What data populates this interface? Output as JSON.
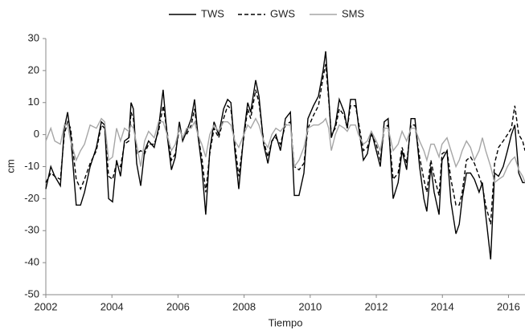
{
  "chart_data": {
    "type": "line",
    "legend_position": "top",
    "xlabel": "Tiempo",
    "ylabel": "cm",
    "xlim": [
      2002,
      2016.5
    ],
    "xticks": [
      2002,
      2004,
      2006,
      2008,
      2010,
      2012,
      2014,
      2016
    ],
    "ylim": [
      -50,
      30
    ],
    "yticks": [
      -50,
      -40,
      -30,
      -20,
      -10,
      0,
      10,
      20,
      30
    ],
    "grid": false,
    "x": [
      2002.0,
      2002.15,
      2002.27,
      2002.44,
      2002.56,
      2002.66,
      2002.75,
      2002.92,
      2003.05,
      2003.17,
      2003.34,
      2003.53,
      2003.68,
      2003.78,
      2003.9,
      2004.02,
      2004.14,
      2004.26,
      2004.38,
      2004.51,
      2004.58,
      2004.65,
      2004.75,
      2004.87,
      2004.99,
      2005.11,
      2005.28,
      2005.41,
      2005.55,
      2005.67,
      2005.8,
      2005.92,
      2006.04,
      2006.14,
      2006.26,
      2006.4,
      2006.5,
      2006.6,
      2006.72,
      2006.84,
      2006.96,
      2007.09,
      2007.23,
      2007.38,
      2007.5,
      2007.6,
      2007.72,
      2007.84,
      2007.99,
      2008.11,
      2008.2,
      2008.35,
      2008.45,
      2008.59,
      2008.72,
      2008.84,
      2008.96,
      2009.1,
      2009.25,
      2009.4,
      2009.52,
      2009.66,
      2009.81,
      2009.93,
      2010.1,
      2010.25,
      2010.39,
      2010.47,
      2010.56,
      2010.64,
      2010.76,
      2010.88,
      2011.03,
      2011.12,
      2011.22,
      2011.37,
      2011.46,
      2011.61,
      2011.73,
      2011.85,
      2012.0,
      2012.12,
      2012.24,
      2012.36,
      2012.51,
      2012.66,
      2012.78,
      2012.92,
      2013.05,
      2013.17,
      2013.31,
      2013.44,
      2013.53,
      2013.65,
      2013.75,
      2013.9,
      2013.99,
      2014.14,
      2014.26,
      2014.41,
      2014.51,
      2014.6,
      2014.73,
      2014.85,
      2014.97,
      2015.11,
      2015.21,
      2015.31,
      2015.46,
      2015.58,
      2015.7,
      2015.84,
      2015.97,
      2016.09,
      2016.19,
      2016.31,
      2016.43,
      2016.5
    ],
    "series": [
      {
        "name": "TWS",
        "color": "#000000",
        "line_style": "solid",
        "values": [
          -17,
          -10,
          -13,
          -16,
          2,
          7,
          0,
          -22,
          -22,
          -18,
          -10,
          -4,
          4,
          3,
          -20,
          -21,
          -8,
          -13,
          -2,
          -1,
          10,
          8,
          -9,
          -16,
          -5,
          -2,
          -4,
          2,
          14,
          0,
          -11,
          -7,
          4,
          -2,
          1,
          5,
          11,
          0,
          -10,
          -25,
          -5,
          4,
          0,
          8,
          11,
          10,
          -5,
          -17,
          0,
          10,
          7,
          17,
          12,
          -3,
          -9,
          -2,
          0,
          -5,
          5,
          7,
          -19,
          -19,
          -12,
          5,
          9,
          12,
          20,
          26,
          12,
          -1,
          3,
          11,
          7,
          2,
          11,
          11,
          3,
          -8,
          -6,
          1,
          -5,
          -10,
          4,
          5,
          -20,
          -15,
          -5,
          -11,
          5,
          5,
          -10,
          -20,
          -24,
          -10,
          -18,
          -25,
          -8,
          -5,
          -21,
          -31,
          -28,
          -20,
          -12,
          -12,
          -14,
          -18,
          -15,
          -25,
          -39,
          -12,
          -13,
          -10,
          -5,
          0,
          3,
          -12,
          -15,
          -15
        ]
      },
      {
        "name": "GWS",
        "color": "#000000",
        "line_style": "dashed",
        "values": [
          -15,
          -12,
          -13,
          -14,
          0,
          4,
          2,
          -14,
          -17,
          -14,
          -9,
          -5,
          3,
          2,
          -13,
          -14,
          -9,
          -10,
          -3,
          -2,
          7,
          5,
          -6,
          -5,
          -6,
          -3,
          -3,
          1,
          9,
          1,
          -8,
          -6,
          2,
          -1,
          0,
          3,
          8,
          0,
          -7,
          -18,
          -6,
          2,
          -1,
          5,
          9,
          8,
          -3,
          -13,
          -1,
          8,
          5,
          14,
          10,
          -2,
          -7,
          -2,
          -1,
          -3,
          3,
          4,
          -10,
          -11,
          -9,
          2,
          6,
          9,
          18,
          22,
          11,
          0,
          2,
          8,
          6,
          2,
          9,
          9,
          4,
          -5,
          -4,
          0,
          -3,
          -8,
          2,
          3,
          -14,
          -12,
          -4,
          -9,
          3,
          3,
          -7,
          -14,
          -18,
          -8,
          -13,
          -19,
          -6,
          -5,
          -14,
          -22,
          -22,
          -18,
          -8,
          -7,
          -9,
          -13,
          -16,
          -22,
          -28,
          -9,
          -4,
          -2,
          0,
          2,
          9,
          0,
          -2,
          -5
        ]
      },
      {
        "name": "SMS",
        "color": "#a6a6a6",
        "line_style": "solid",
        "values": [
          -2,
          2,
          -2,
          -3,
          3,
          3,
          -2,
          -8,
          -5,
          -3,
          3,
          2,
          5,
          4,
          -8,
          -7,
          2,
          -2,
          2,
          1,
          3,
          2,
          -3,
          -10,
          -2,
          1,
          -1,
          4,
          4,
          0,
          -5,
          -3,
          2,
          -1,
          2,
          2,
          4,
          0,
          -3,
          -7,
          0,
          3,
          1,
          4,
          4,
          3,
          -2,
          -4,
          0,
          3,
          2,
          5,
          3,
          -2,
          -4,
          0,
          2,
          1,
          3,
          3,
          -10,
          -8,
          -4,
          2,
          3,
          3,
          4,
          5,
          2,
          -5,
          0,
          3,
          2,
          1,
          3,
          3,
          0,
          -3,
          -2,
          1,
          -2,
          -5,
          2,
          2,
          -5,
          -3,
          1,
          -2,
          2,
          2,
          -2,
          -5,
          -8,
          -3,
          -3,
          -7,
          -3,
          -1,
          -5,
          -10,
          -8,
          -5,
          -2,
          -4,
          -8,
          -5,
          -1,
          -5,
          -10,
          -15,
          -14,
          -13,
          -10,
          -8,
          -7,
          -11,
          -13,
          -15
        ]
      }
    ]
  }
}
